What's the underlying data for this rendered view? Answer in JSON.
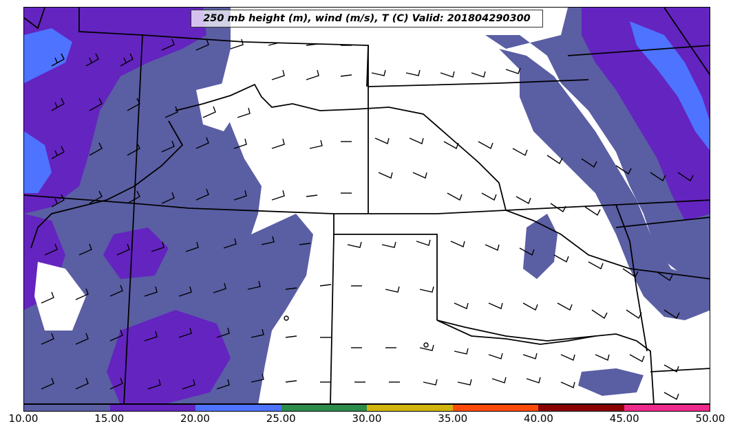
{
  "title": "250 mb height (m), wind (m/s), T (C) Valid: 201804290300",
  "colorbar": {
    "ticks": [
      "10.00",
      "15.00",
      "20.00",
      "25.00",
      "30.00",
      "35.00",
      "40.00",
      "45.00",
      "50.00"
    ],
    "colors": [
      "#5a5ea3",
      "#6424c0",
      "#4e73fe",
      "#2d8c4a",
      "#d2b40e",
      "#ff4b0a",
      "#8b0000",
      "#ee2a8a"
    ]
  },
  "map": {
    "fill_colors": {
      "band_10_15": "#5a5ea3",
      "band_15_20": "#6424c0",
      "band_20_25": "#4e73fe"
    }
  }
}
